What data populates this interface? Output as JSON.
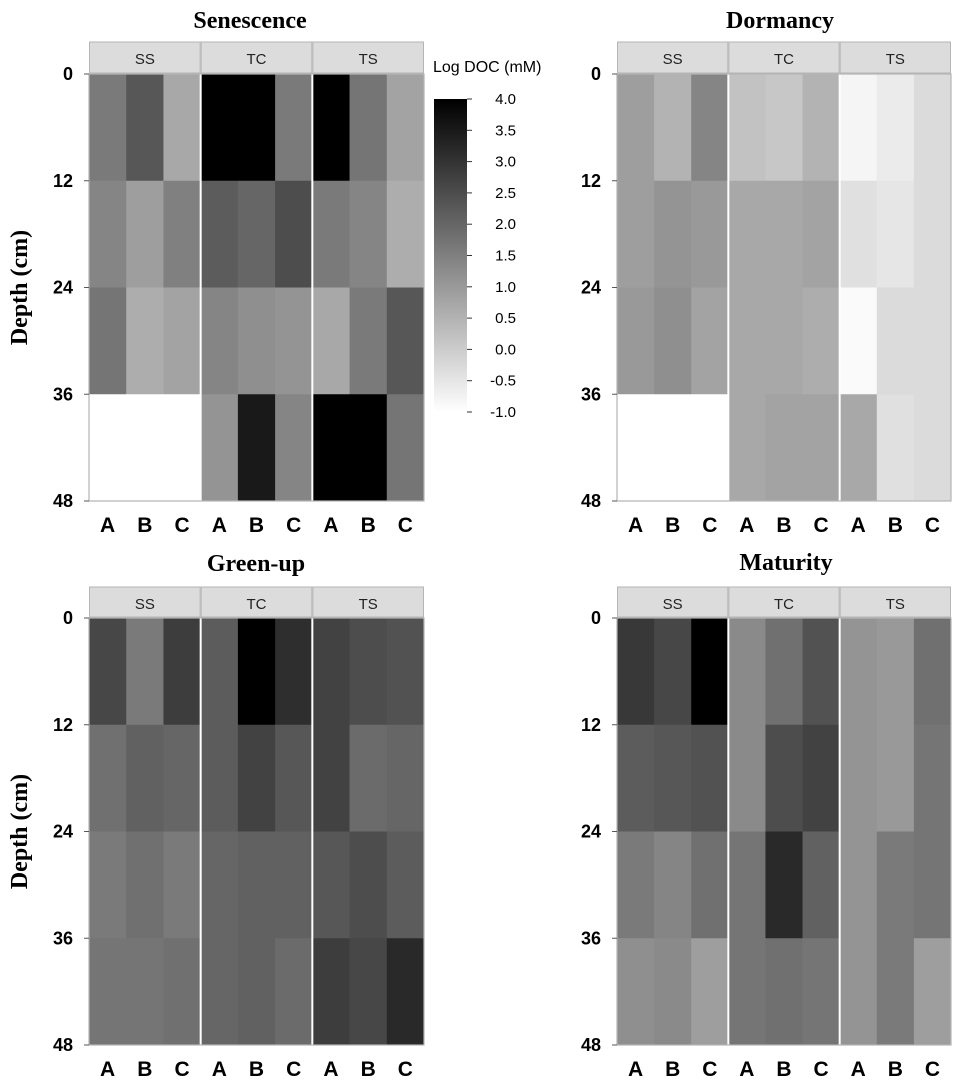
{
  "chart_data": {
    "type": "heatmap",
    "facets": [
      "SS",
      "TC",
      "TS"
    ],
    "columns": [
      "A",
      "B",
      "C"
    ],
    "depth_ticks": [
      0,
      12,
      24,
      36,
      48
    ],
    "depth_bins": [
      [
        0,
        12
      ],
      [
        12,
        24
      ],
      [
        24,
        36
      ],
      [
        36,
        48
      ]
    ],
    "ylabel": "Depth (cm)",
    "colorbar": {
      "title": "Log DOC (mM)",
      "min": -1.0,
      "max": 4.0,
      "ticks": [
        "4.0",
        "3.5",
        "3.0",
        "2.5",
        "2.0",
        "1.5",
        "1.0",
        "0.5",
        "0.0",
        "-0.5",
        "-1.0"
      ],
      "color_low": "#ffffff",
      "color_high": "#000000"
    },
    "panels": [
      {
        "title": "Senescence",
        "values": {
          "SS": [
            [
              1.6,
              2.3,
              0.7
            ],
            [
              1.4,
              0.9,
              1.5
            ],
            [
              1.7,
              0.6,
              0.8
            ],
            [
              null,
              null,
              null
            ]
          ],
          "TC": [
            [
              4.0,
              4.0,
              1.6
            ],
            [
              2.2,
              2.0,
              2.5
            ],
            [
              1.4,
              1.2,
              1.1
            ],
            [
              1.1,
              3.5,
              1.4
            ]
          ],
          "TS": [
            [
              4.0,
              1.7,
              0.8
            ],
            [
              1.6,
              1.4,
              0.6
            ],
            [
              0.7,
              1.6,
              2.3
            ],
            [
              4.0,
              4.0,
              1.7
            ]
          ]
        }
      },
      {
        "title": "Dormancy",
        "values": {
          "SS": [
            [
              0.9,
              0.5,
              1.4
            ],
            [
              0.9,
              1.1,
              1.0
            ],
            [
              1.0,
              1.2,
              0.8
            ],
            [
              null,
              null,
              null
            ]
          ],
          "TC": [
            [
              0.2,
              0.1,
              0.5
            ],
            [
              0.7,
              0.7,
              0.8
            ],
            [
              0.7,
              0.7,
              0.6
            ],
            [
              0.7,
              0.8,
              0.8
            ]
          ],
          "TS": [
            [
              -0.8,
              -0.6,
              -0.3
            ],
            [
              -0.4,
              -0.5,
              -0.3
            ],
            [
              -0.9,
              -0.3,
              -0.3
            ],
            [
              0.7,
              -0.4,
              -0.3
            ]
          ]
        }
      },
      {
        "title": "Green-up",
        "values": {
          "SS": [
            [
              2.6,
              1.6,
              2.8
            ],
            [
              1.8,
              2.1,
              2.0
            ],
            [
              1.6,
              1.8,
              1.6
            ],
            [
              1.7,
              1.7,
              1.8
            ]
          ],
          "TC": [
            [
              2.2,
              4.0,
              3.1
            ],
            [
              2.2,
              2.7,
              2.3
            ],
            [
              2.0,
              2.1,
              2.1
            ],
            [
              2.0,
              2.1,
              1.9
            ]
          ],
          "TS": [
            [
              2.7,
              2.5,
              2.4
            ],
            [
              2.7,
              1.9,
              2.0
            ],
            [
              2.3,
              2.5,
              2.2
            ],
            [
              2.8,
              2.6,
              3.2
            ]
          ]
        }
      },
      {
        "title": "Maturity",
        "values": {
          "SS": [
            [
              2.9,
              2.6,
              4.0
            ],
            [
              2.2,
              2.3,
              2.4
            ],
            [
              1.6,
              1.4,
              1.8
            ],
            [
              1.2,
              1.3,
              0.9
            ]
          ],
          "TC": [
            [
              1.3,
              1.8,
              2.4
            ],
            [
              1.3,
              2.5,
              2.7
            ],
            [
              1.7,
              3.2,
              2.1
            ],
            [
              1.7,
              1.8,
              1.7
            ]
          ],
          "TS": [
            [
              1.1,
              1.0,
              1.8
            ],
            [
              1.1,
              1.0,
              1.7
            ],
            [
              1.1,
              1.6,
              1.7
            ],
            [
              1.1,
              1.6,
              0.9
            ]
          ]
        }
      }
    ]
  }
}
